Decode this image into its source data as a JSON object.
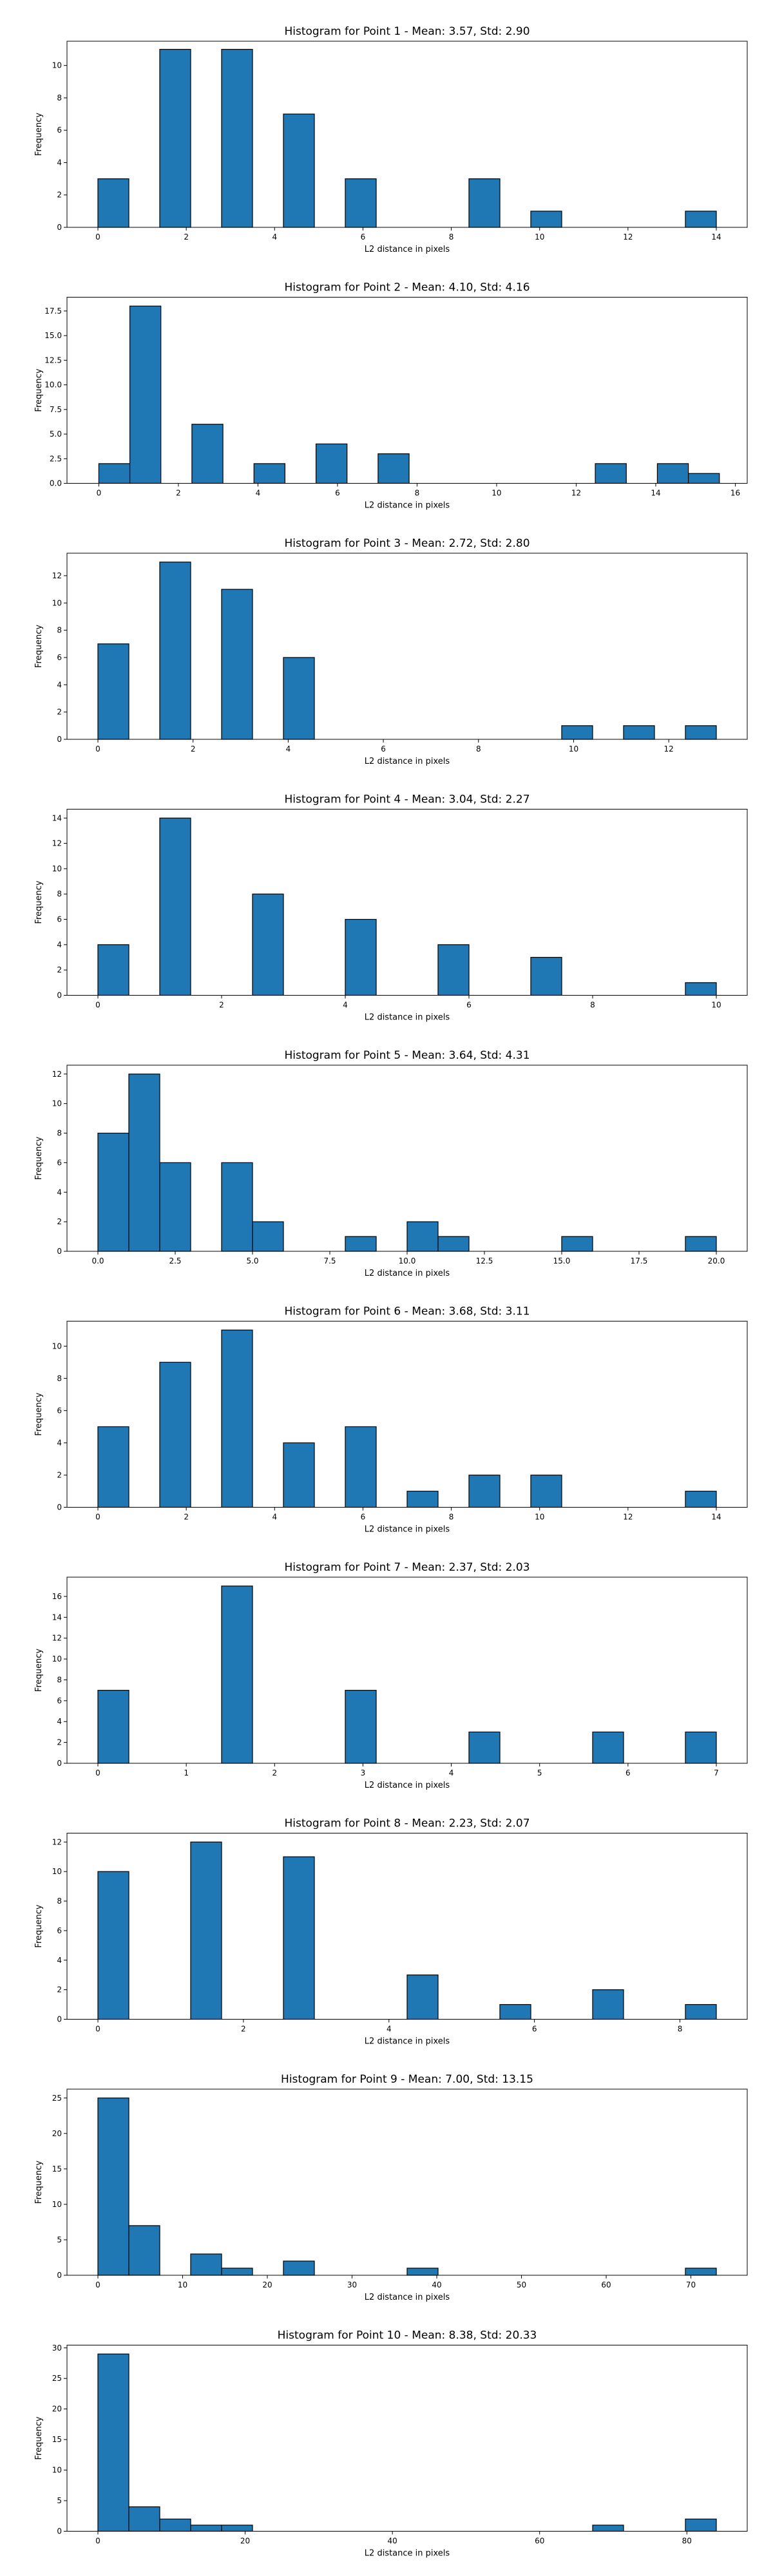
{
  "style": {
    "bar_color": "#1f77b4",
    "edge_color": "#000000"
  },
  "chart_data": [
    {
      "type": "bar",
      "title": "Histogram for Point 1 - Mean: 3.57, Std: 2.90",
      "xlabel": "L2 distance in pixels",
      "ylabel": "Frequency",
      "xlim": [
        -0.7,
        14.7
      ],
      "ylim": [
        0,
        11.5
      ],
      "xticks": [
        0,
        2,
        4,
        6,
        8,
        10,
        12,
        14
      ],
      "xtick_labels": [
        "0",
        "2",
        "4",
        "6",
        "8",
        "10",
        "12",
        "14"
      ],
      "yticks": [
        0,
        2,
        4,
        6,
        8,
        10
      ],
      "ytick_labels": [
        "0",
        "2",
        "4",
        "6",
        "8",
        "10"
      ],
      "bins": [
        {
          "x0": 0.0,
          "x1": 0.7,
          "value": 3
        },
        {
          "x0": 1.4,
          "x1": 2.1,
          "value": 11
        },
        {
          "x0": 2.8,
          "x1": 3.5,
          "value": 11
        },
        {
          "x0": 4.2,
          "x1": 4.9,
          "value": 7
        },
        {
          "x0": 5.6,
          "x1": 6.3,
          "value": 3
        },
        {
          "x0": 8.4,
          "x1": 9.1,
          "value": 3
        },
        {
          "x0": 9.8,
          "x1": 10.5,
          "value": 1
        },
        {
          "x0": 13.3,
          "x1": 14.0,
          "value": 1
        }
      ]
    },
    {
      "type": "bar",
      "title": "Histogram for Point 2 - Mean: 4.10, Std: 4.16",
      "xlabel": "L2 distance in pixels",
      "ylabel": "Frequency",
      "xlim": [
        -0.8,
        16.3
      ],
      "ylim": [
        0,
        18.9
      ],
      "xticks": [
        0,
        2,
        4,
        6,
        8,
        10,
        12,
        14,
        16
      ],
      "xtick_labels": [
        "0",
        "2",
        "4",
        "6",
        "8",
        "10",
        "12",
        "14",
        "16"
      ],
      "yticks": [
        0,
        2.5,
        5,
        7.5,
        10,
        12.5,
        15,
        17.5
      ],
      "ytick_labels": [
        "0.0",
        "2.5",
        "5.0",
        "7.5",
        "10.0",
        "12.5",
        "15.0",
        "17.5"
      ],
      "bins": [
        {
          "x0": 0.0,
          "x1": 0.78,
          "value": 2
        },
        {
          "x0": 0.78,
          "x1": 1.56,
          "value": 18
        },
        {
          "x0": 2.34,
          "x1": 3.12,
          "value": 6
        },
        {
          "x0": 3.9,
          "x1": 4.68,
          "value": 2
        },
        {
          "x0": 5.46,
          "x1": 6.24,
          "value": 4
        },
        {
          "x0": 7.02,
          "x1": 7.8,
          "value": 3
        },
        {
          "x0": 12.48,
          "x1": 13.26,
          "value": 2
        },
        {
          "x0": 14.04,
          "x1": 14.82,
          "value": 2
        },
        {
          "x0": 14.82,
          "x1": 15.6,
          "value": 1
        }
      ]
    },
    {
      "type": "bar",
      "title": "Histogram for Point 3 - Mean: 2.72, Std: 2.80",
      "xlabel": "L2 distance in pixels",
      "ylabel": "Frequency",
      "xlim": [
        -0.65,
        13.65
      ],
      "ylim": [
        0,
        13.65
      ],
      "xticks": [
        0,
        2,
        4,
        6,
        8,
        10,
        12
      ],
      "xtick_labels": [
        "0",
        "2",
        "4",
        "6",
        "8",
        "10",
        "12"
      ],
      "yticks": [
        0,
        2,
        4,
        6,
        8,
        10,
        12
      ],
      "ytick_labels": [
        "0",
        "2",
        "4",
        "6",
        "8",
        "10",
        "12"
      ],
      "bins": [
        {
          "x0": 0.0,
          "x1": 0.65,
          "value": 7
        },
        {
          "x0": 1.3,
          "x1": 1.95,
          "value": 13
        },
        {
          "x0": 2.6,
          "x1": 3.25,
          "value": 11
        },
        {
          "x0": 3.9,
          "x1": 4.55,
          "value": 6
        },
        {
          "x0": 9.75,
          "x1": 10.4,
          "value": 1
        },
        {
          "x0": 11.05,
          "x1": 11.7,
          "value": 1
        },
        {
          "x0": 12.35,
          "x1": 13.0,
          "value": 1
        }
      ]
    },
    {
      "type": "bar",
      "title": "Histogram for Point 4 - Mean: 3.04, Std: 2.27",
      "xlabel": "L2 distance in pixels",
      "ylabel": "Frequency",
      "xlim": [
        -0.5,
        10.5
      ],
      "ylim": [
        0,
        14.7
      ],
      "xticks": [
        0,
        2,
        4,
        6,
        8,
        10
      ],
      "xtick_labels": [
        "0",
        "2",
        "4",
        "6",
        "8",
        "10"
      ],
      "yticks": [
        0,
        2,
        4,
        6,
        8,
        10,
        12,
        14
      ],
      "ytick_labels": [
        "0",
        "2",
        "4",
        "6",
        "8",
        "10",
        "12",
        "14"
      ],
      "bins": [
        {
          "x0": 0.0,
          "x1": 0.5,
          "value": 4
        },
        {
          "x0": 1.0,
          "x1": 1.5,
          "value": 14
        },
        {
          "x0": 2.5,
          "x1": 3.0,
          "value": 8
        },
        {
          "x0": 4.0,
          "x1": 4.5,
          "value": 6
        },
        {
          "x0": 5.5,
          "x1": 6.0,
          "value": 4
        },
        {
          "x0": 7.0,
          "x1": 7.5,
          "value": 3
        },
        {
          "x0": 9.5,
          "x1": 10.0,
          "value": 1
        }
      ]
    },
    {
      "type": "bar",
      "title": "Histogram for Point 5 - Mean: 3.64, Std: 4.31",
      "xlabel": "L2 distance in pixels",
      "ylabel": "Frequency",
      "xlim": [
        -1.0,
        21.0
      ],
      "ylim": [
        0,
        12.6
      ],
      "xticks": [
        0,
        2.5,
        5,
        7.5,
        10,
        12.5,
        15,
        17.5,
        20
      ],
      "xtick_labels": [
        "0.0",
        "2.5",
        "5.0",
        "7.5",
        "10.0",
        "12.5",
        "15.0",
        "17.5",
        "20.0"
      ],
      "yticks": [
        0,
        2,
        4,
        6,
        8,
        10,
        12
      ],
      "ytick_labels": [
        "0",
        "2",
        "4",
        "6",
        "8",
        "10",
        "12"
      ],
      "bins": [
        {
          "x0": 0.0,
          "x1": 1.0,
          "value": 8
        },
        {
          "x0": 1.0,
          "x1": 2.0,
          "value": 12
        },
        {
          "x0": 2.0,
          "x1": 3.0,
          "value": 6
        },
        {
          "x0": 4.0,
          "x1": 5.0,
          "value": 6
        },
        {
          "x0": 5.0,
          "x1": 6.0,
          "value": 2
        },
        {
          "x0": 8.0,
          "x1": 9.0,
          "value": 1
        },
        {
          "x0": 10.0,
          "x1": 11.0,
          "value": 2
        },
        {
          "x0": 11.0,
          "x1": 12.0,
          "value": 1
        },
        {
          "x0": 15.0,
          "x1": 16.0,
          "value": 1
        },
        {
          "x0": 19.0,
          "x1": 20.0,
          "value": 1
        }
      ]
    },
    {
      "type": "bar",
      "title": "Histogram for Point 6 - Mean: 3.68, Std: 3.11",
      "xlabel": "L2 distance in pixels",
      "ylabel": "Frequency",
      "xlim": [
        -0.7,
        14.7
      ],
      "ylim": [
        0,
        11.55
      ],
      "xticks": [
        0,
        2,
        4,
        6,
        8,
        10,
        12,
        14
      ],
      "xtick_labels": [
        "0",
        "2",
        "4",
        "6",
        "8",
        "10",
        "12",
        "14"
      ],
      "yticks": [
        0,
        2,
        4,
        6,
        8,
        10
      ],
      "ytick_labels": [
        "0",
        "2",
        "4",
        "6",
        "8",
        "10"
      ],
      "bins": [
        {
          "x0": 0.0,
          "x1": 0.7,
          "value": 5
        },
        {
          "x0": 1.4,
          "x1": 2.1,
          "value": 9
        },
        {
          "x0": 2.8,
          "x1": 3.5,
          "value": 11
        },
        {
          "x0": 4.2,
          "x1": 4.9,
          "value": 4
        },
        {
          "x0": 5.6,
          "x1": 6.3,
          "value": 5
        },
        {
          "x0": 7.0,
          "x1": 7.7,
          "value": 1
        },
        {
          "x0": 8.4,
          "x1": 9.1,
          "value": 2
        },
        {
          "x0": 9.8,
          "x1": 10.5,
          "value": 2
        },
        {
          "x0": 13.3,
          "x1": 14.0,
          "value": 1
        }
      ]
    },
    {
      "type": "bar",
      "title": "Histogram for Point 7 - Mean: 2.37, Std: 2.03",
      "xlabel": "L2 distance in pixels",
      "ylabel": "Frequency",
      "xlim": [
        -0.35,
        7.35
      ],
      "ylim": [
        0,
        17.85
      ],
      "xticks": [
        0,
        1,
        2,
        3,
        4,
        5,
        6,
        7
      ],
      "xtick_labels": [
        "0",
        "1",
        "2",
        "3",
        "4",
        "5",
        "6",
        "7"
      ],
      "yticks": [
        0,
        2,
        4,
        6,
        8,
        10,
        12,
        14,
        16
      ],
      "ytick_labels": [
        "0",
        "2",
        "4",
        "6",
        "8",
        "10",
        "12",
        "14",
        "16"
      ],
      "bins": [
        {
          "x0": 0.0,
          "x1": 0.35,
          "value": 7
        },
        {
          "x0": 1.4,
          "x1": 1.75,
          "value": 17
        },
        {
          "x0": 2.8,
          "x1": 3.15,
          "value": 7
        },
        {
          "x0": 4.2,
          "x1": 4.55,
          "value": 3
        },
        {
          "x0": 5.6,
          "x1": 5.95,
          "value": 3
        },
        {
          "x0": 6.65,
          "x1": 7.0,
          "value": 3
        }
      ]
    },
    {
      "type": "bar",
      "title": "Histogram for Point 8 - Mean: 2.23, Std: 2.07",
      "xlabel": "L2 distance in pixels",
      "ylabel": "Frequency",
      "xlim": [
        -0.425,
        8.925
      ],
      "ylim": [
        0,
        12.6
      ],
      "xticks": [
        0,
        2,
        4,
        6,
        8
      ],
      "xtick_labels": [
        "0",
        "2",
        "4",
        "6",
        "8"
      ],
      "yticks": [
        0,
        2,
        4,
        6,
        8,
        10,
        12
      ],
      "ytick_labels": [
        "0",
        "2",
        "4",
        "6",
        "8",
        "10",
        "12"
      ],
      "bins": [
        {
          "x0": 0.0,
          "x1": 0.425,
          "value": 10
        },
        {
          "x0": 1.275,
          "x1": 1.7,
          "value": 12
        },
        {
          "x0": 2.55,
          "x1": 2.975,
          "value": 11
        },
        {
          "x0": 4.25,
          "x1": 4.675,
          "value": 3
        },
        {
          "x0": 5.525,
          "x1": 5.95,
          "value": 1
        },
        {
          "x0": 6.8,
          "x1": 7.225,
          "value": 2
        },
        {
          "x0": 8.075,
          "x1": 8.5,
          "value": 1
        }
      ]
    },
    {
      "type": "bar",
      "title": "Histogram for Point 9 - Mean: 7.00, Std: 13.15",
      "xlabel": "L2 distance in pixels",
      "ylabel": "Frequency",
      "xlim": [
        -3.65,
        76.65
      ],
      "ylim": [
        0,
        26.25
      ],
      "xticks": [
        0,
        10,
        20,
        30,
        40,
        50,
        60,
        70
      ],
      "xtick_labels": [
        "0",
        "10",
        "20",
        "30",
        "40",
        "50",
        "60",
        "70"
      ],
      "yticks": [
        0,
        5,
        10,
        15,
        20,
        25
      ],
      "ytick_labels": [
        "0",
        "5",
        "10",
        "15",
        "20",
        "25"
      ],
      "bins": [
        {
          "x0": 0.0,
          "x1": 3.65,
          "value": 25
        },
        {
          "x0": 3.65,
          "x1": 7.3,
          "value": 7
        },
        {
          "x0": 10.95,
          "x1": 14.6,
          "value": 3
        },
        {
          "x0": 14.6,
          "x1": 18.25,
          "value": 1
        },
        {
          "x0": 21.9,
          "x1": 25.55,
          "value": 2
        },
        {
          "x0": 36.5,
          "x1": 40.15,
          "value": 1
        },
        {
          "x0": 69.35,
          "x1": 73.0,
          "value": 1
        }
      ]
    },
    {
      "type": "bar",
      "title": "Histogram for Point 10 - Mean: 8.38, Std: 20.33",
      "xlabel": "L2 distance in pixels",
      "ylabel": "Frequency",
      "xlim": [
        -4.2,
        88.2
      ],
      "ylim": [
        0,
        30.45
      ],
      "xticks": [
        0,
        20,
        40,
        60,
        80
      ],
      "xtick_labels": [
        "0",
        "20",
        "40",
        "60",
        "80"
      ],
      "yticks": [
        0,
        5,
        10,
        15,
        20,
        25,
        30
      ],
      "ytick_labels": [
        "0",
        "5",
        "10",
        "15",
        "20",
        "25",
        "30"
      ],
      "bins": [
        {
          "x0": 0.0,
          "x1": 4.2,
          "value": 29
        },
        {
          "x0": 4.2,
          "x1": 8.4,
          "value": 4
        },
        {
          "x0": 8.4,
          "x1": 12.6,
          "value": 2
        },
        {
          "x0": 12.6,
          "x1": 16.8,
          "value": 1
        },
        {
          "x0": 16.8,
          "x1": 21.0,
          "value": 1
        },
        {
          "x0": 67.2,
          "x1": 71.4,
          "value": 1
        },
        {
          "x0": 79.8,
          "x1": 84.0,
          "value": 2
        }
      ]
    }
  ]
}
